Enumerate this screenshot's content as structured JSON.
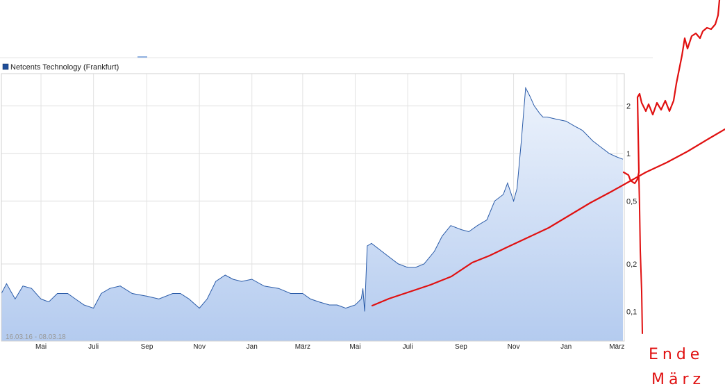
{
  "legend": {
    "label": "Netcents Technology (Frankfurt)",
    "swatch_color": "#1f4e99"
  },
  "range_label": "16.03.16 - 08.03.18",
  "annotation": {
    "line1": "Ende",
    "line2": "März",
    "color": "#e01010"
  },
  "chart_data": {
    "type": "area",
    "series": [
      {
        "name": "Netcents Technology (Frankfurt)",
        "color": "#2a5ba8",
        "fill": "#c6d8f5",
        "x": [
          "2016-03-16",
          "2016-03-22",
          "2016-04-01",
          "2016-04-10",
          "2016-04-20",
          "2016-05-01",
          "2016-05-10",
          "2016-05-20",
          "2016-06-01",
          "2016-06-10",
          "2016-06-20",
          "2016-07-01",
          "2016-07-10",
          "2016-07-20",
          "2016-08-01",
          "2016-08-15",
          "2016-09-01",
          "2016-09-15",
          "2016-10-01",
          "2016-10-10",
          "2016-10-20",
          "2016-11-01",
          "2016-11-10",
          "2016-11-20",
          "2016-12-01",
          "2016-12-10",
          "2016-12-20",
          "2017-01-01",
          "2017-01-15",
          "2017-02-01",
          "2017-02-15",
          "2017-03-01",
          "2017-03-10",
          "2017-03-20",
          "2017-04-01",
          "2017-04-10",
          "2017-04-20",
          "2017-05-01",
          "2017-05-08",
          "2017-05-10",
          "2017-05-12",
          "2017-05-15",
          "2017-05-20",
          "2017-06-01",
          "2017-06-10",
          "2017-06-20",
          "2017-07-01",
          "2017-07-10",
          "2017-07-20",
          "2017-08-01",
          "2017-08-10",
          "2017-08-20",
          "2017-09-01",
          "2017-09-10",
          "2017-09-20",
          "2017-10-01",
          "2017-10-10",
          "2017-10-20",
          "2017-10-25",
          "2017-11-01",
          "2017-11-05",
          "2017-11-10",
          "2017-11-15",
          "2017-11-20",
          "2017-11-25",
          "2017-12-01",
          "2017-12-05",
          "2017-12-10",
          "2017-12-20",
          "2018-01-01",
          "2018-01-10",
          "2018-01-20",
          "2018-02-01",
          "2018-02-10",
          "2018-02-20",
          "2018-03-01",
          "2018-03-08"
        ],
        "values": [
          0.13,
          0.15,
          0.12,
          0.145,
          0.14,
          0.12,
          0.115,
          0.13,
          0.13,
          0.12,
          0.11,
          0.105,
          0.13,
          0.14,
          0.145,
          0.13,
          0.125,
          0.12,
          0.13,
          0.13,
          0.12,
          0.105,
          0.12,
          0.155,
          0.17,
          0.16,
          0.155,
          0.16,
          0.145,
          0.14,
          0.13,
          0.13,
          0.12,
          0.115,
          0.11,
          0.11,
          0.105,
          0.11,
          0.12,
          0.14,
          0.1,
          0.26,
          0.27,
          0.24,
          0.22,
          0.2,
          0.19,
          0.19,
          0.2,
          0.24,
          0.3,
          0.35,
          0.33,
          0.32,
          0.35,
          0.38,
          0.5,
          0.55,
          0.65,
          0.5,
          0.6,
          1.2,
          2.6,
          2.3,
          2.0,
          1.8,
          1.7,
          1.7,
          1.65,
          1.6,
          1.5,
          1.4,
          1.2,
          1.1,
          1.0,
          0.95,
          0.92
        ]
      }
    ],
    "y_scale": "log",
    "ylim": [
      0.065,
      3.2
    ],
    "yticks": [
      "2",
      "1",
      "0,5",
      "0,2",
      "0,1"
    ],
    "ytick_values": [
      2,
      1,
      0.5,
      0.2,
      0.1
    ],
    "xticks": [
      "Mai",
      "Juli",
      "Sep",
      "Nov",
      "Jan",
      "März",
      "Mai",
      "Juli",
      "Sep",
      "Nov",
      "Jan",
      "März"
    ],
    "xtick_dates": [
      "2016-05-01",
      "2016-07-01",
      "2016-09-01",
      "2016-11-01",
      "2017-01-01",
      "2017-03-01",
      "2017-05-01",
      "2017-07-01",
      "2017-09-01",
      "2017-11-01",
      "2018-01-01",
      "2018-03-01"
    ],
    "xlim": [
      "2016-03-16",
      "2018-03-08"
    ],
    "grid": true
  }
}
